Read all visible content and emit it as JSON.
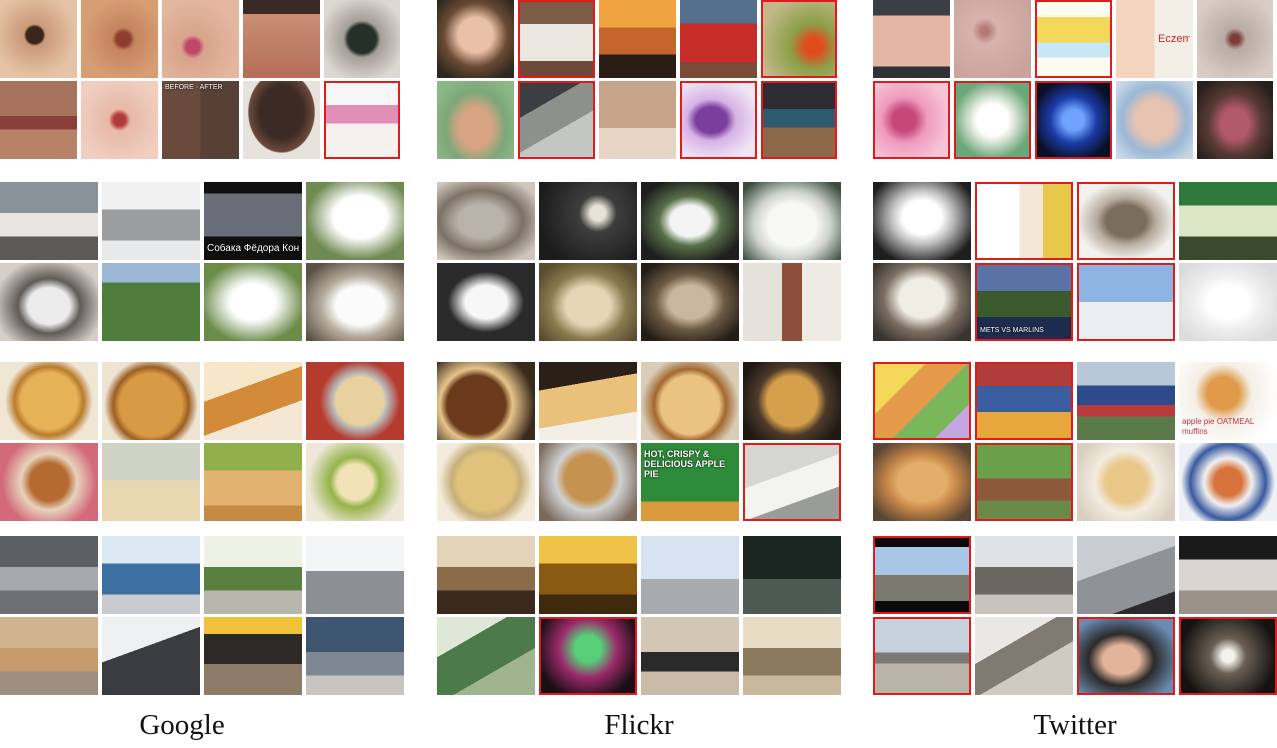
{
  "captions": {
    "google": "Google",
    "flickr": "Flickr",
    "twitter": "Twitter"
  },
  "tile_text": {
    "google_dog_poster": "Собака Фёдора Конюхова",
    "twitter_skin_eczema": "Eczema",
    "twitter_dog_news": "METS VS MARLINS",
    "twitter_pie_label": "apple pie OATMEAL muffins",
    "flickr_pie_ad": "HOT, CRISPY & DELICIOUS APPLE PIE",
    "google_skin_ba": "BEFORE · AFTER"
  },
  "colors": {
    "highlight_border": "#e01b1b",
    "background": "#ffffff"
  },
  "highlighted_tiles": {
    "google": [
      "skin-bottom-5"
    ],
    "flickr": [
      "skin-top-2",
      "skin-top-5",
      "skin-bottom-2",
      "skin-bottom-5",
      "food-bottom-4",
      "airport-bottom-2"
    ],
    "twitter": [
      "skin-top-3",
      "skin-bottom-1",
      "skin-bottom-2",
      "skin-bottom-3",
      "dog-top-2",
      "dog-top-3",
      "dog-bottom-2",
      "dog-bottom-3",
      "food-top-1",
      "food-top-2",
      "food-bottom-2",
      "airport-top-1",
      "airport-bottom-1",
      "airport-bottom-3",
      "airport-bottom-4"
    ]
  }
}
